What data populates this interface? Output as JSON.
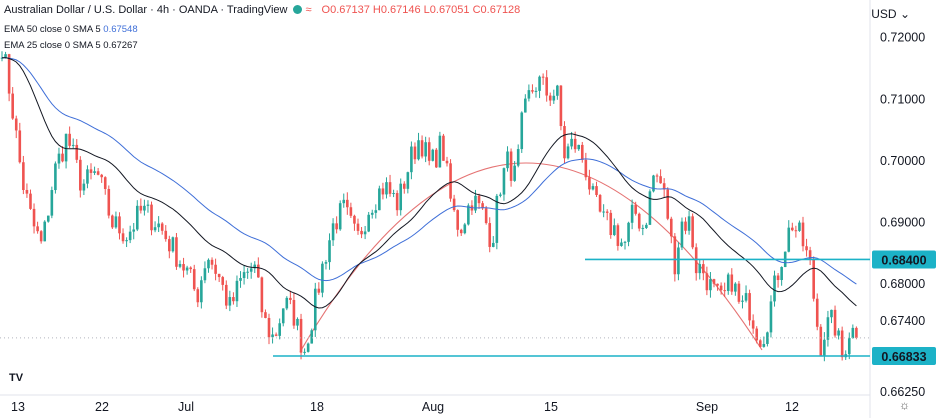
{
  "header": {
    "title": "Australian Dollar / U.S. Dollar · 4h · OANDA · TradingView",
    "ohlc": "O0.67137  H0.67146  L0.67051  C0.67128"
  },
  "indicators": [
    {
      "label": "EMA 50 close 0 SMA 5",
      "value": "0.67548"
    },
    {
      "label": "EMA 25 close 0 SMA 5",
      "value": "0.67267"
    }
  ],
  "currency": "USD",
  "colors": {
    "up": "#26a69a",
    "down": "#ef5350",
    "ema50": "#3f6fd8",
    "ema25": "#131722",
    "level": "#1cb2c7",
    "arc": "#e57373"
  },
  "chart_data": {
    "type": "candlestick",
    "ylim": [
      0.662,
      0.7245
    ],
    "y_ticks": [
      {
        "value": 0.72,
        "label": "0.72000"
      },
      {
        "value": 0.71,
        "label": "0.71000"
      },
      {
        "value": 0.7,
        "label": "0.70000"
      },
      {
        "value": 0.69,
        "label": "0.69000"
      },
      {
        "value": 0.68,
        "label": "0.68000"
      },
      {
        "value": 0.674,
        "label": "0.67400"
      },
      {
        "value": 0.6625,
        "label": "0.66250"
      }
    ],
    "x_ticks": [
      "13",
      "22",
      "Jul",
      "18",
      "Aug",
      "15",
      "Sep",
      "12"
    ],
    "levels": [
      {
        "value": 0.684,
        "label": "0.68400"
      },
      {
        "value": 0.66833,
        "label": "0.66833"
      }
    ],
    "last_price": 0.67128,
    "price_path": [
      [
        0,
        0.719
      ],
      [
        10,
        0.709
      ],
      [
        20,
        0.697
      ],
      [
        30,
        0.69
      ],
      [
        40,
        0.686
      ],
      [
        52,
        0.698
      ],
      [
        65,
        0.704
      ],
      [
        80,
        0.696
      ],
      [
        95,
        0.698
      ],
      [
        110,
        0.69
      ],
      [
        125,
        0.688
      ],
      [
        140,
        0.692
      ],
      [
        155,
        0.69
      ],
      [
        170,
        0.686
      ],
      [
        185,
        0.682
      ],
      [
        195,
        0.678
      ],
      [
        205,
        0.685
      ],
      [
        215,
        0.682
      ],
      [
        228,
        0.676
      ],
      [
        240,
        0.681
      ],
      [
        252,
        0.683
      ],
      [
        262,
        0.674
      ],
      [
        272,
        0.671
      ],
      [
        282,
        0.677
      ],
      [
        292,
        0.675
      ],
      [
        302,
        0.669
      ],
      [
        312,
        0.676
      ],
      [
        322,
        0.684
      ],
      [
        332,
        0.69
      ],
      [
        342,
        0.692
      ],
      [
        355,
        0.687
      ],
      [
        368,
        0.693
      ],
      [
        382,
        0.696
      ],
      [
        396,
        0.693
      ],
      [
        408,
        0.7
      ],
      [
        418,
        0.704
      ],
      [
        428,
        0.699
      ],
      [
        440,
        0.703
      ],
      [
        450,
        0.692
      ],
      [
        458,
        0.689
      ],
      [
        470,
        0.694
      ],
      [
        482,
        0.691
      ],
      [
        490,
        0.687
      ],
      [
        498,
        0.696
      ],
      [
        506,
        0.7
      ],
      [
        514,
        0.697
      ],
      [
        520,
        0.706
      ],
      [
        528,
        0.711
      ],
      [
        536,
        0.713
      ],
      [
        545,
        0.711
      ],
      [
        555,
        0.711
      ],
      [
        562,
        0.701
      ],
      [
        572,
        0.703
      ],
      [
        582,
        0.7
      ],
      [
        592,
        0.693
      ],
      [
        602,
        0.69
      ],
      [
        612,
        0.689
      ],
      [
        622,
        0.686
      ],
      [
        632,
        0.692
      ],
      [
        642,
        0.689
      ],
      [
        652,
        0.698
      ],
      [
        660,
        0.696
      ],
      [
        666,
        0.691
      ],
      [
        672,
        0.683
      ],
      [
        680,
        0.69
      ],
      [
        688,
        0.69
      ],
      [
        694,
        0.683
      ],
      [
        702,
        0.682
      ],
      [
        710,
        0.679
      ],
      [
        720,
        0.677
      ],
      [
        730,
        0.681
      ],
      [
        738,
        0.676
      ],
      [
        746,
        0.677
      ],
      [
        754,
        0.673
      ],
      [
        760,
        0.671
      ],
      [
        768,
        0.676
      ],
      [
        776,
        0.682
      ],
      [
        782,
        0.686
      ],
      [
        790,
        0.69
      ],
      [
        800,
        0.687
      ],
      [
        808,
        0.683
      ],
      [
        814,
        0.675
      ],
      [
        818,
        0.67
      ],
      [
        824,
        0.673
      ],
      [
        832,
        0.674
      ],
      [
        840,
        0.668
      ],
      [
        848,
        0.673
      ],
      [
        858,
        0.671
      ]
    ]
  }
}
